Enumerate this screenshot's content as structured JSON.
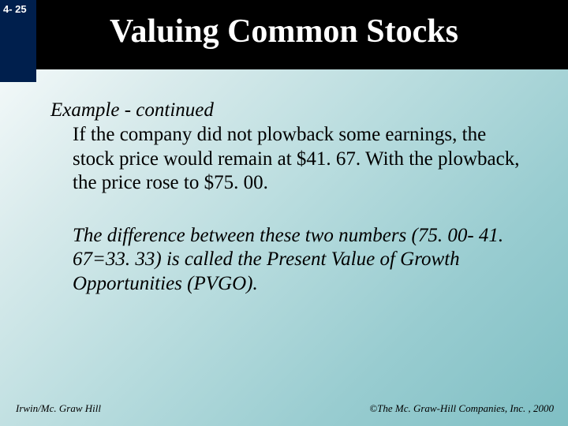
{
  "page_tab": "4- 25",
  "title": "Valuing Common Stocks",
  "heading": "Example - continued",
  "para1": "If the company did not plowback some earnings, the stock price would remain at $41. 67.  With the plowback, the price rose to $75. 00.",
  "para2": "The difference between these two numbers (75. 00- 41. 67=33. 33) is called the Present Value of Growth Opportunities (PVGO).",
  "footer_left": "Irwin/Mc. Graw Hill",
  "footer_right": "©The Mc. Graw-Hill Companies, Inc. , 2000"
}
